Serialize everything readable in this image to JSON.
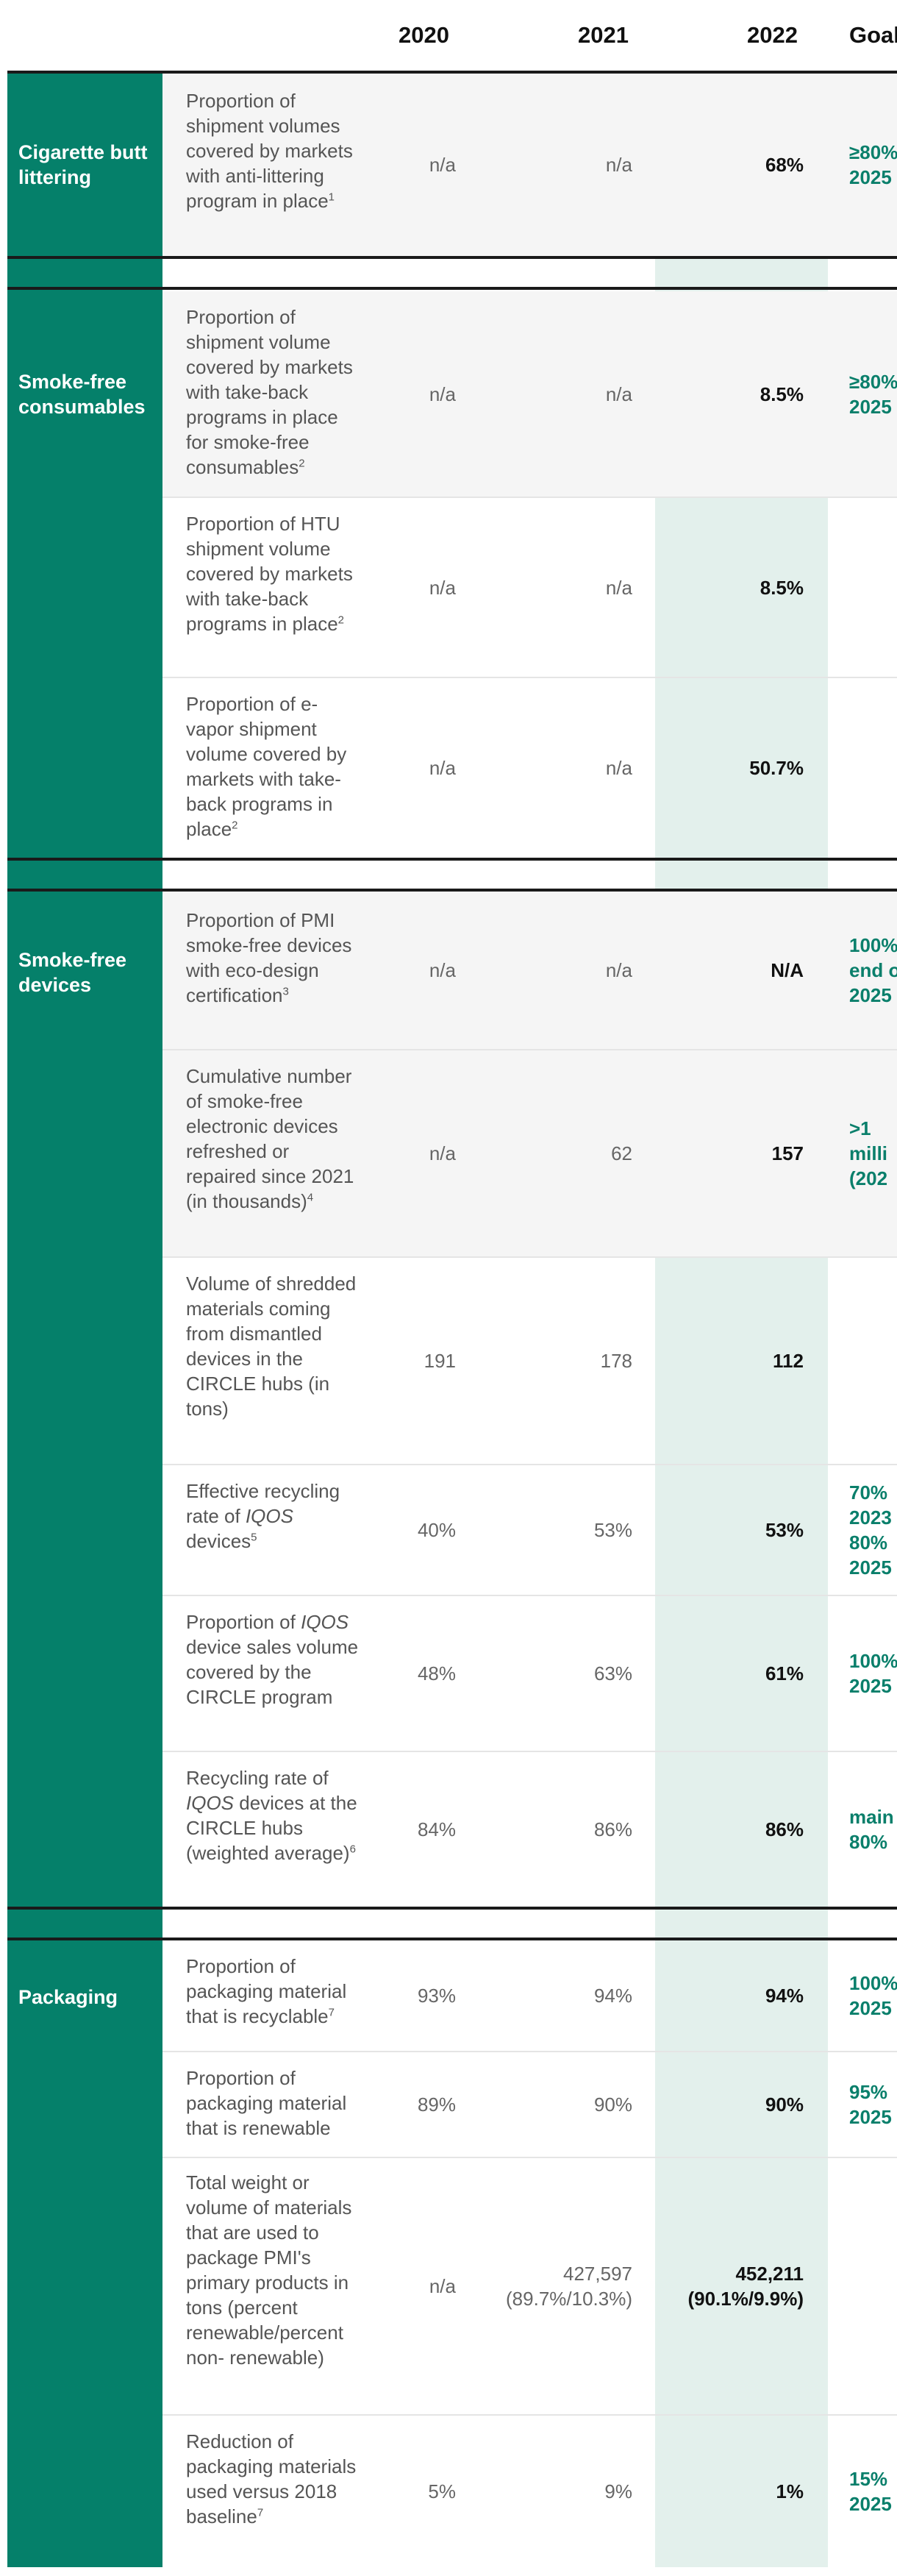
{
  "header": {
    "col_2020": "2020",
    "col_2021": "2021",
    "col_2022": "2022",
    "col_goal": "Goal"
  },
  "categories": {
    "cigarette": "Cigarette butt littering",
    "consumables": "Smoke-free consumables",
    "devices": "Smoke-free devices",
    "packaging": "Packaging"
  },
  "rows": [
    {
      "pre": "Proportion of shipment volumes covered by markets with anti-littering program in place",
      "sup": "1",
      "v2020": "n/a",
      "v2021": "n/a",
      "v2022": "68%",
      "goal": "≥80%\n2025"
    },
    {
      "pre": "Proportion of shipment volume covered by markets with take-back programs in place for smoke-free consumables",
      "sup": "2",
      "v2020": "n/a",
      "v2021": "n/a",
      "v2022": "8.5%",
      "goal": "≥80%\n2025"
    },
    {
      "pre": "Proportion of HTU shipment volume covered by markets with take-back programs in place",
      "sup": "2",
      "v2020": "n/a",
      "v2021": "n/a",
      "v2022": "8.5%",
      "goal": ""
    },
    {
      "pre": "Proportion of e-vapor shipment volume covered by markets with take-back programs in place",
      "sup": "2",
      "v2020": "n/a",
      "v2021": "n/a",
      "v2022": "50.7%",
      "goal": ""
    },
    {
      "pre": "Proportion of PMI smoke-free devices with eco-design certification",
      "sup": "3",
      "v2020": "n/a",
      "v2021": "n/a",
      "v2022": "N/A",
      "goal": "100%\nend o\n2025"
    },
    {
      "pre": "Cumulative number of smoke-free electronic devices refreshed or repaired since 2021 (in thousands)",
      "sup": "4",
      "v2020": "n/a",
      "v2021": "62",
      "v2022": "157",
      "goal": ">1\nmilli\n(202"
    },
    {
      "pre": "Volume of shredded materials coming from dismantled devices in the CIRCLE hubs (in tons)",
      "sup": "",
      "v2020": "191",
      "v2021": "178",
      "v2022": "112",
      "goal": ""
    },
    {
      "pre": "Effective recycling rate of ",
      "em": "IQOS",
      "post": " devices",
      "sup": "5",
      "v2020": "40%",
      "v2021": "53%",
      "v2022": "53%",
      "goal": "70%\n2023\n80%\n2025"
    },
    {
      "pre": "Proportion of ",
      "em": "IQOS",
      "post": " device sales volume covered by the CIRCLE program",
      "sup": "",
      "v2020": "48%",
      "v2021": "63%",
      "v2022": "61%",
      "goal": "100%\n2025"
    },
    {
      "pre": "Recycling rate of ",
      "em": "IQOS",
      "post": " devices at the CIRCLE hubs (weighted average)",
      "sup": "6",
      "v2020": "84%",
      "v2021": "86%",
      "v2022": "86%",
      "goal": "main\n80%"
    },
    {
      "pre": "Proportion of packaging material that is recyclable",
      "sup": "7",
      "v2020": "93%",
      "v2021": "94%",
      "v2022": "94%",
      "goal": "100%\n2025"
    },
    {
      "pre": "Proportion of packaging material that is renewable",
      "sup": "",
      "v2020": "89%",
      "v2021": "90%",
      "v2022": "90%",
      "goal": "95%\n2025"
    },
    {
      "pre": "Total weight or volume of materials that are used to package PMI's primary products in tons (percent renewable/percent non- renewable)",
      "sup": "",
      "v2020": "n/a",
      "v2021": "427,597\n(89.7%/10.3%)",
      "v2022": "452,211\n(90.1%/9.9%)",
      "goal": ""
    },
    {
      "pre": "Reduction of packaging materials used versus 2018 baseline",
      "sup": "7",
      "v2020": "5%",
      "v2021": "9%",
      "v2022": "1%",
      "goal": "15%\n2025"
    }
  ]
}
